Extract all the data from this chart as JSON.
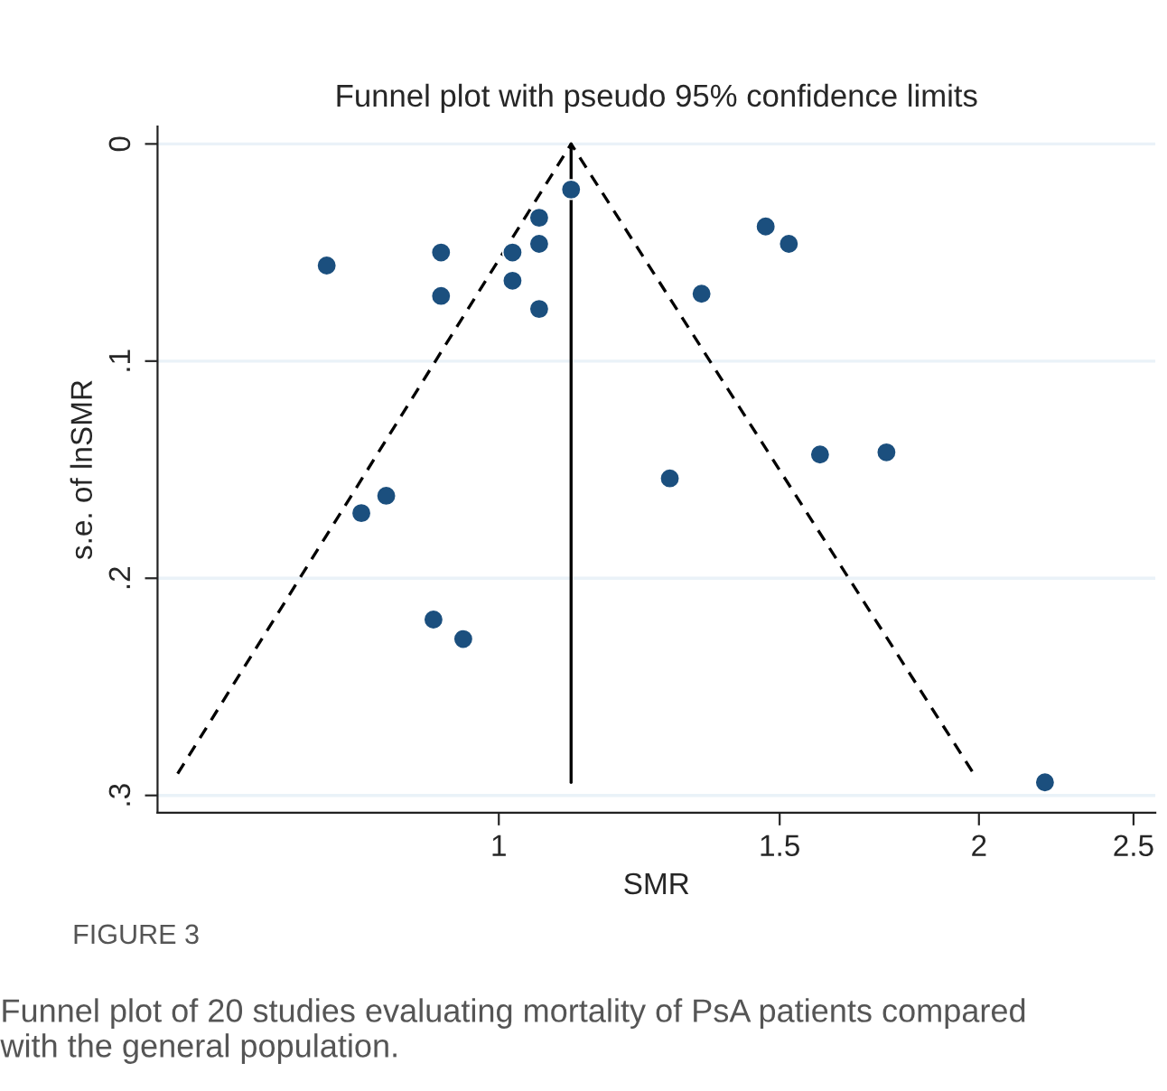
{
  "chart_data": {
    "type": "scatter",
    "title": "Funnel plot with pseudo 95% confidence limits",
    "xlabel": "SMR",
    "ylabel": "s.e. of lnSMR",
    "log": "x",
    "xlim": [
      0.611,
      2.58
    ],
    "xticks": [
      1,
      1.5,
      2,
      2.5
    ],
    "ylim": [
      0.308,
      -0.008
    ],
    "yticks": [
      {
        "value": 0,
        "label": "0"
      },
      {
        "value": 0.1,
        "label": ".1"
      },
      {
        "value": 0.2,
        "label": ".2"
      },
      {
        "value": 0.3,
        "label": ".3"
      }
    ],
    "grid": "y",
    "marker": "circle",
    "series": [
      {
        "color": "#1b4f7e",
        "x": [
          0.78,
          0.92,
          0.92,
          1.02,
          1.02,
          1.06,
          1.06,
          1.06,
          1.11,
          0.85,
          0.82,
          0.91,
          0.95,
          1.28,
          1.47,
          1.52,
          1.34,
          1.59,
          1.75,
          2.2
        ],
        "values": [
          0.056,
          0.05,
          0.07,
          0.05,
          0.063,
          0.034,
          0.046,
          0.076,
          0.021,
          0.162,
          0.17,
          0.219,
          0.228,
          0.154,
          0.038,
          0.046,
          0.069,
          0.143,
          0.142,
          0.294
        ]
      },
      {
        "type": "line",
        "color": "#000000",
        "line_style": "dashed",
        "marker": "none",
        "x": [
          0.629,
          1.11,
          1.985
        ],
        "values": [
          0.29,
          0,
          0.29
        ]
      },
      {
        "type": "line",
        "color": "#000000",
        "line_style": "solid",
        "marker": "none",
        "x": [
          1.11,
          1.11
        ],
        "values": [
          0,
          0.294
        ]
      }
    ],
    "annotations": [
      "FIGURE 3",
      "Funnel plot of 20 studies evaluating mortality of PsA patients compared with the general population."
    ]
  }
}
